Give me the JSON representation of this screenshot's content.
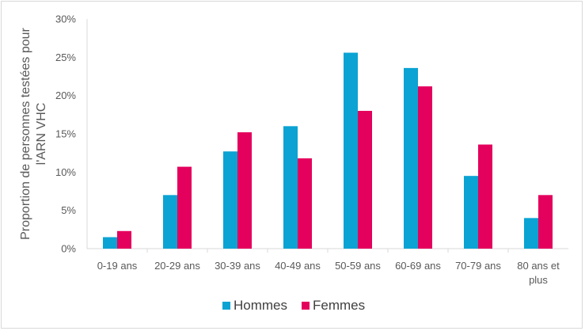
{
  "chart_data": {
    "type": "bar",
    "title": "",
    "ylabel_lines": [
      "Proportion de personnes testées pour",
      "l'ARN VHC"
    ],
    "xlabel": "",
    "categories": [
      [
        "0-19 ans"
      ],
      [
        "20-29 ans"
      ],
      [
        "30-39 ans"
      ],
      [
        "40-49 ans"
      ],
      [
        "50-59 ans"
      ],
      [
        "60-69 ans"
      ],
      [
        "70-79 ans"
      ],
      [
        "80 ans et",
        "plus"
      ]
    ],
    "series": [
      {
        "name": "Hommes",
        "color": "#0aa3d3",
        "values": [
          1.5,
          7.0,
          12.7,
          16.0,
          25.6,
          23.6,
          9.5,
          4.0
        ]
      },
      {
        "name": "Femmes",
        "color": "#e4005d",
        "values": [
          2.3,
          10.7,
          15.2,
          11.8,
          18.0,
          21.2,
          13.6,
          7.0
        ]
      }
    ],
    "ylim": [
      0,
      30
    ],
    "yticks": [
      0,
      5,
      10,
      15,
      20,
      25,
      30
    ],
    "ytick_labels": [
      "0%",
      "5%",
      "10%",
      "15%",
      "20%",
      "25%",
      "30%"
    ],
    "grid": false,
    "legend_position": "bottom"
  }
}
